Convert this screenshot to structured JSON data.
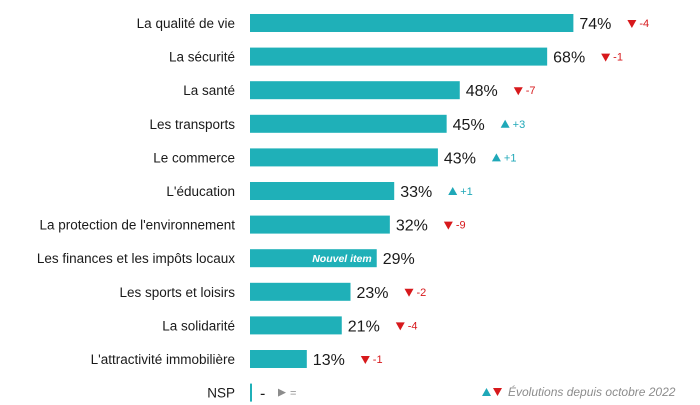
{
  "chart_data": {
    "type": "bar",
    "orientation": "horizontal",
    "bar_color": "#1fb0b8",
    "up_color": "#1fa8b8",
    "down_color": "#d7191c",
    "neutral_color": "#8c8c8c",
    "xlim": [
      0,
      100
    ],
    "categories": [
      "La qualité de vie",
      "La sécurité",
      "La santé",
      "Les transports",
      "Le commerce",
      "L'éducation",
      "La protection de l'environnement",
      "Les finances et les impôts locaux",
      "Les sports et loisirs",
      "La solidarité",
      "L'attractivité immobilière",
      "NSP"
    ],
    "values": [
      74,
      68,
      48,
      45,
      43,
      33,
      32,
      29,
      23,
      21,
      13,
      0
    ],
    "value_labels": [
      "74%",
      "68%",
      "48%",
      "45%",
      "43%",
      "33%",
      "32%",
      "29%",
      "23%",
      "21%",
      "13%",
      "-"
    ],
    "changes": [
      {
        "dir": "down",
        "text": "-4"
      },
      {
        "dir": "down",
        "text": "-1"
      },
      {
        "dir": "down",
        "text": "-7"
      },
      {
        "dir": "up",
        "text": "+3"
      },
      {
        "dir": "up",
        "text": "+1"
      },
      {
        "dir": "up",
        "text": "+1"
      },
      {
        "dir": "down",
        "text": "-9"
      },
      {
        "dir": "none",
        "text": ""
      },
      {
        "dir": "down",
        "text": "-2"
      },
      {
        "dir": "down",
        "text": "-4"
      },
      {
        "dir": "down",
        "text": "-1"
      },
      {
        "dir": "equal",
        "text": "="
      }
    ],
    "badges": [
      {
        "index": 7,
        "text": "Nouvel item"
      }
    ],
    "legend": "Évolutions depuis octobre 2022"
  }
}
